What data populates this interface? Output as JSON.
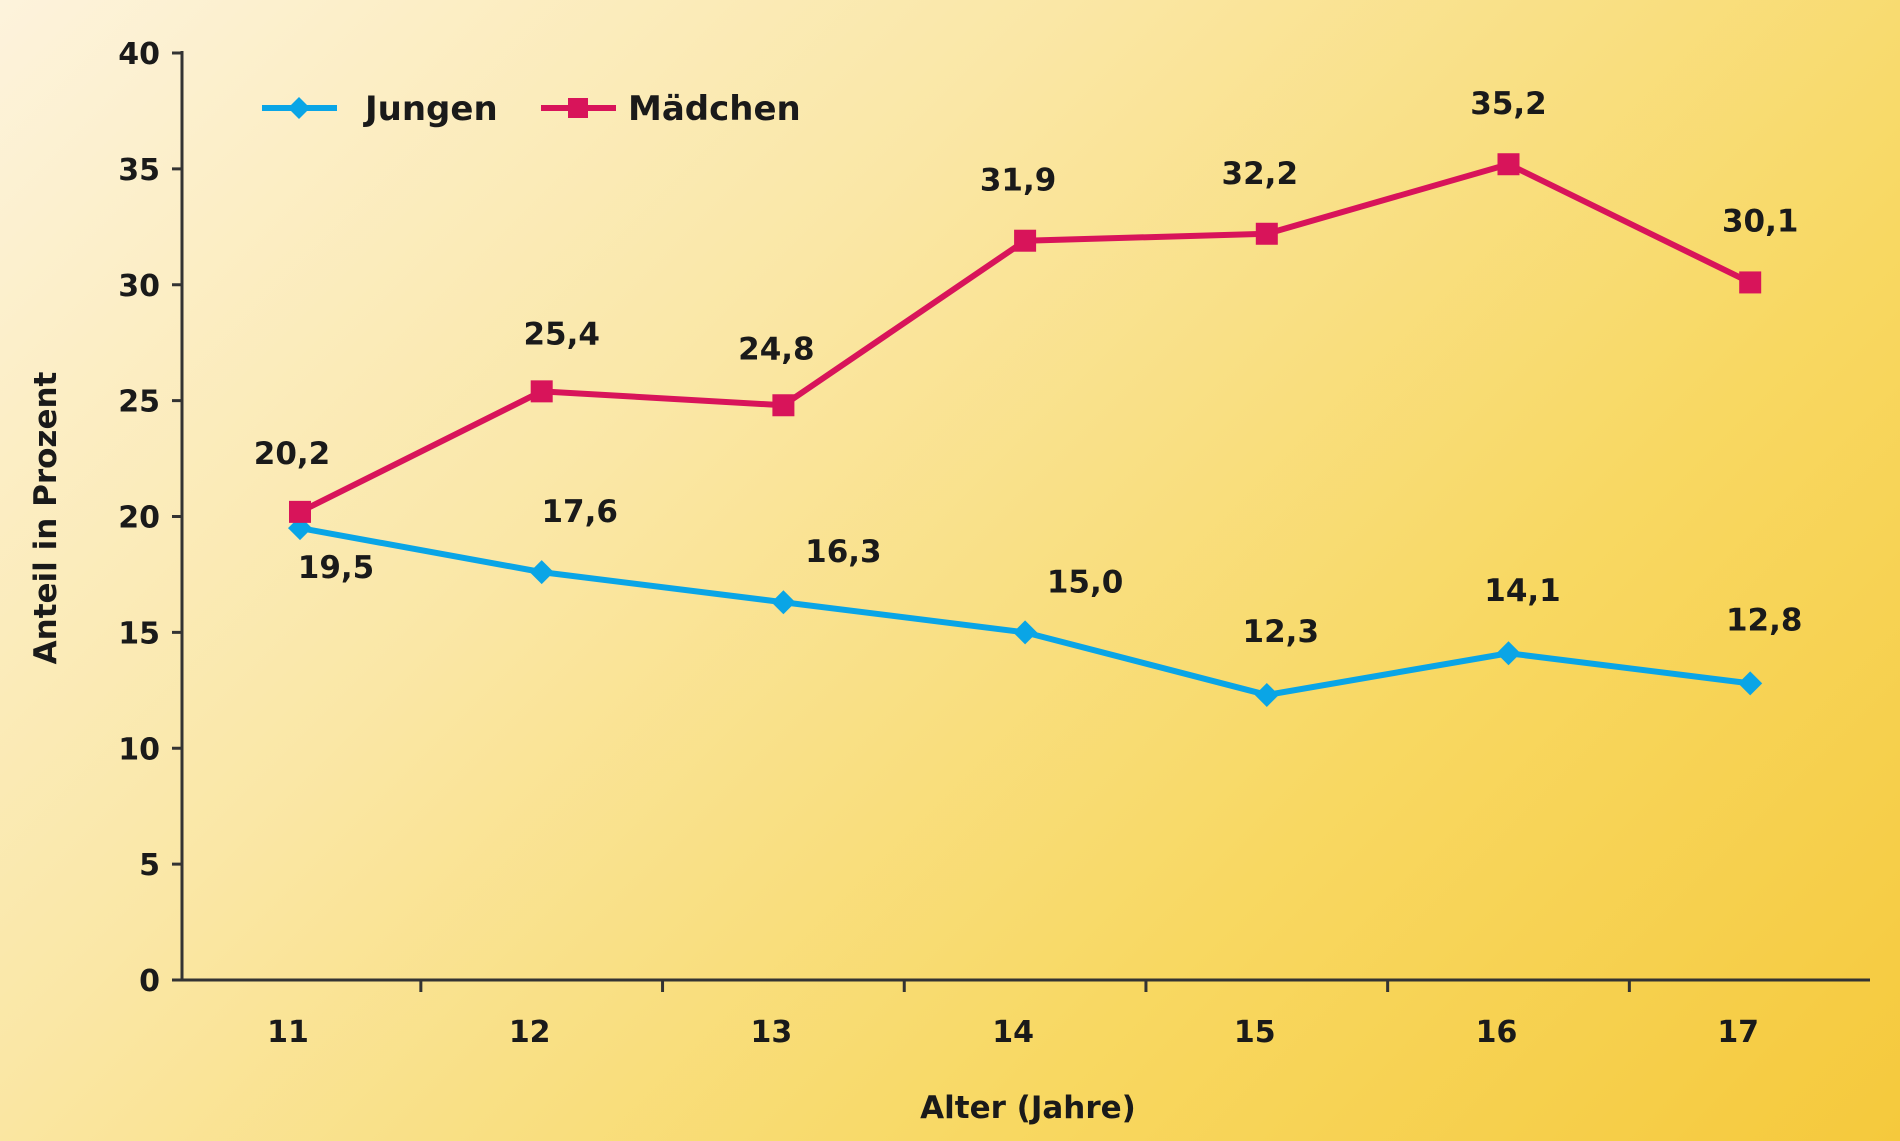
{
  "chart_data": {
    "type": "line",
    "title": "",
    "xlabel": "Alter (Jahre)",
    "ylabel": "Anteil in Prozent",
    "categories": [
      "11",
      "12",
      "13",
      "14",
      "15",
      "16",
      "17"
    ],
    "x": [
      11,
      12,
      13,
      14,
      15,
      16,
      17
    ],
    "ylim": [
      0,
      40
    ],
    "yticks": [
      0,
      5,
      10,
      15,
      20,
      25,
      30,
      35,
      40
    ],
    "grid": false,
    "legend_position": "top-left",
    "series": [
      {
        "name": "Jungen",
        "color": "#0aa5e6",
        "marker": "diamond",
        "values": [
          19.5,
          17.6,
          16.3,
          15.0,
          12.3,
          14.1,
          12.8
        ],
        "labels": [
          "19,5",
          "17,6",
          "16,3",
          "15,0",
          "12,3",
          "14,1",
          "12,8"
        ]
      },
      {
        "name": "Mädchen",
        "color": "#d8145a",
        "marker": "square",
        "values": [
          20.2,
          25.4,
          24.8,
          31.9,
          32.2,
          35.2,
          30.1
        ],
        "labels": [
          "20,2",
          "25,4",
          "24,8",
          "31,9",
          "32,2",
          "35,2",
          "30,1"
        ]
      }
    ]
  }
}
